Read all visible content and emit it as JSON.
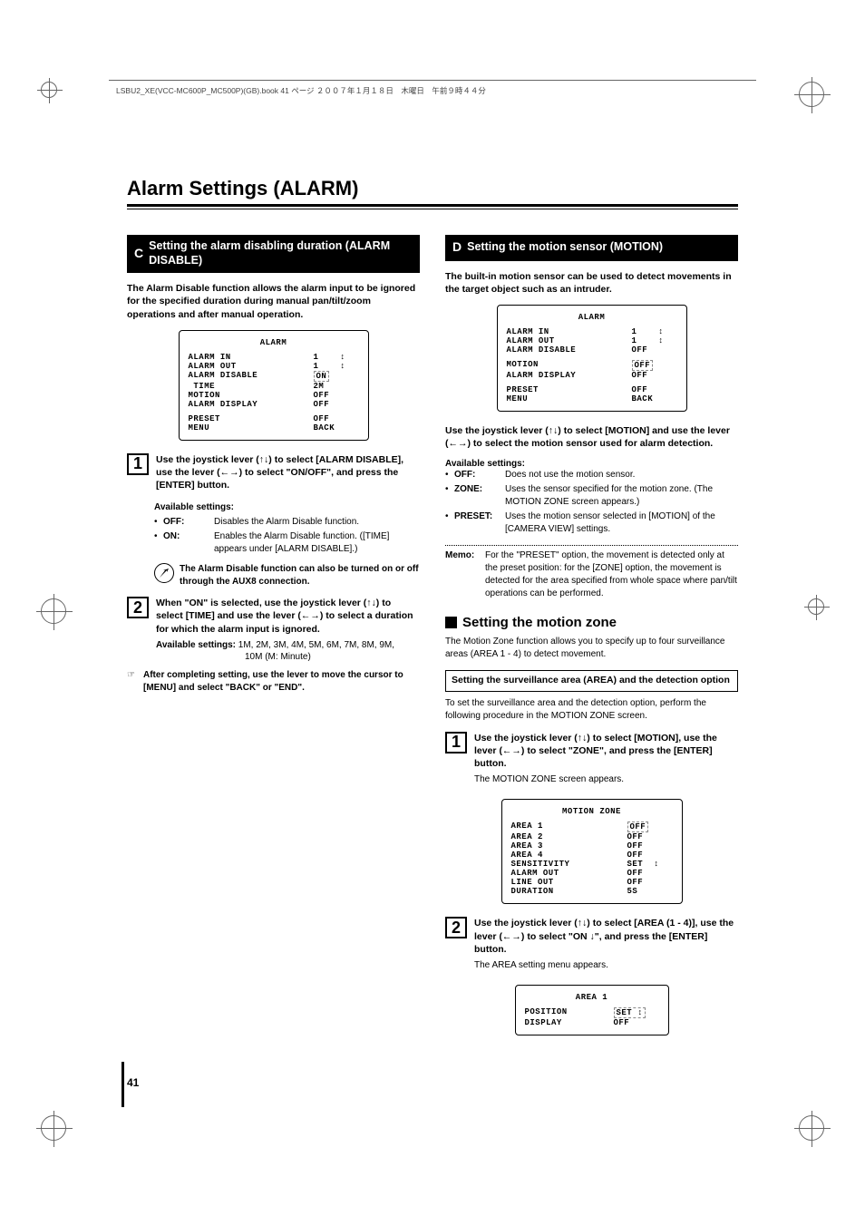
{
  "header_text": "LSBU2_XE(VCC-MC600P_MC500P)(GB).book  41 ページ  ２００７年１月１８日　木曜日　午前９時４４分",
  "main_title": "Alarm Settings (ALARM)",
  "page_number": "41",
  "left": {
    "section_letter": "C",
    "section_title": "Setting the alarm disabling duration (ALARM DISABLE)",
    "intro": "The Alarm Disable function allows the alarm input to be ignored for the specified duration during manual pan/tilt/zoom operations and after manual operation.",
    "menu": {
      "title": "ALARM",
      "rows": [
        {
          "lbl": "ALARM IN",
          "val": "1    ↕"
        },
        {
          "lbl": "ALARM OUT",
          "val": "1    ↕"
        },
        {
          "lbl": "ALARM DISABLE",
          "val": "ON",
          "dashed": true
        },
        {
          "lbl": " TIME",
          "val": "2M"
        },
        {
          "lbl": "MOTION",
          "val": "OFF"
        },
        {
          "lbl": "ALARM DISPLAY",
          "val": "OFF"
        }
      ],
      "footer": [
        {
          "lbl": "PRESET",
          "val": "OFF"
        },
        {
          "lbl": "MENU",
          "val": "BACK"
        }
      ]
    },
    "step1": {
      "num": "1",
      "title": "Use the joystick lever (↑↓) to select [ALARM DISABLE], use the lever (←→) to select \"ON/OFF\", and press the [ENTER] button.",
      "avail_label": "Available settings:",
      "items": [
        {
          "key": "OFF:",
          "desc": "Disables the Alarm Disable function."
        },
        {
          "key": "ON:",
          "desc": "Enables the Alarm Disable function. ([TIME] appears under [ALARM DISABLE].)"
        }
      ],
      "tip": "The Alarm Disable function can also be turned on or off through the AUX8 connection."
    },
    "step2": {
      "num": "2",
      "title": "When \"ON\" is selected, use the joystick lever (↑↓) to select [TIME] and use the lever (←→) to select a duration for which the alarm input is ignored.",
      "avail_label": "Available settings:",
      "avail_values": "1M, 2M, 3M, 4M, 5M, 6M, 7M, 8M, 9M,",
      "avail_values2": "10M (M: Minute)"
    },
    "footer_note_sym": "☞",
    "footer_note": "After completing setting, use the lever to move the cursor to [MENU] and select \"BACK\" or \"END\"."
  },
  "right": {
    "section_letter": "D",
    "section_title": "Setting the motion sensor (MOTION)",
    "intro": "The built-in motion sensor can be used to detect movements in the target object such as an intruder.",
    "menu": {
      "title": "ALARM",
      "rows": [
        {
          "lbl": "ALARM IN",
          "val": "1    ↕"
        },
        {
          "lbl": "ALARM OUT",
          "val": "1    ↕"
        },
        {
          "lbl": "ALARM DISABLE",
          "val": "OFF"
        }
      ],
      "rows2": [
        {
          "lbl": "MOTION",
          "val": "OFF",
          "dashed": true
        },
        {
          "lbl": "ALARM DISPLAY",
          "val": "OFF"
        }
      ],
      "footer": [
        {
          "lbl": "PRESET",
          "val": "OFF"
        },
        {
          "lbl": "MENU",
          "val": "BACK"
        }
      ]
    },
    "instruction": "Use the joystick lever (↑↓) to select [MOTION] and use the lever (←→) to select the motion sensor used for alarm detection.",
    "avail_label": "Available settings:",
    "items": [
      {
        "key": "OFF:",
        "desc": "Does not use the motion sensor."
      },
      {
        "key": "ZONE:",
        "desc": "Uses the sensor specified for the motion zone. (The MOTION ZONE screen appears.)"
      },
      {
        "key": "PRESET:",
        "desc": "Uses the motion sensor selected in [MOTION] of the [CAMERA VIEW] settings."
      }
    ],
    "memo_label": "Memo:",
    "memo": "For the \"PRESET\" option, the movement is detected only at the preset position: for the [ZONE] option, the movement is detected for the area specified from whole space where pan/tilt operations can be performed.",
    "sub_title": "Setting the motion zone",
    "sub_intro": "The Motion Zone function allows you to specify up to four surveillance areas (AREA 1 - 4) to detect movement.",
    "sub_box": "Setting the surveillance area (AREA) and the detection option",
    "sub_box_desc": "To set the surveillance area and the detection option, perform the following procedure in the MOTION ZONE screen.",
    "step1": {
      "num": "1",
      "title": "Use the joystick lever (↑↓) to select [MOTION], use the lever (←→) to select \"ZONE\", and press the [ENTER] button.",
      "desc": "The MOTION ZONE screen appears."
    },
    "menu2": {
      "title": "MOTION ZONE",
      "rows": [
        {
          "lbl": "AREA 1",
          "val": "OFF",
          "dashed": true
        },
        {
          "lbl": "AREA 2",
          "val": "OFF"
        },
        {
          "lbl": "AREA 3",
          "val": "OFF"
        },
        {
          "lbl": "AREA 4",
          "val": "OFF"
        },
        {
          "lbl": "SENSITIVITY",
          "val": "SET  ↕"
        },
        {
          "lbl": "ALARM OUT",
          "val": "OFF"
        },
        {
          "lbl": "LINE OUT",
          "val": "OFF"
        },
        {
          "lbl": "DURATION",
          "val": "5S"
        }
      ]
    },
    "step2": {
      "num": "2",
      "title": "Use the joystick lever (↑↓) to select [AREA (1 - 4)], use the lever (←→) to select \"ON ↓\", and press the [ENTER] button.",
      "desc": "The AREA setting menu appears."
    },
    "menu3": {
      "title": "AREA 1",
      "rows": [
        {
          "lbl": "POSITION",
          "val": "SET ↕",
          "dashed": true
        },
        {
          "lbl": "DISPLAY",
          "val": "OFF"
        }
      ]
    }
  }
}
